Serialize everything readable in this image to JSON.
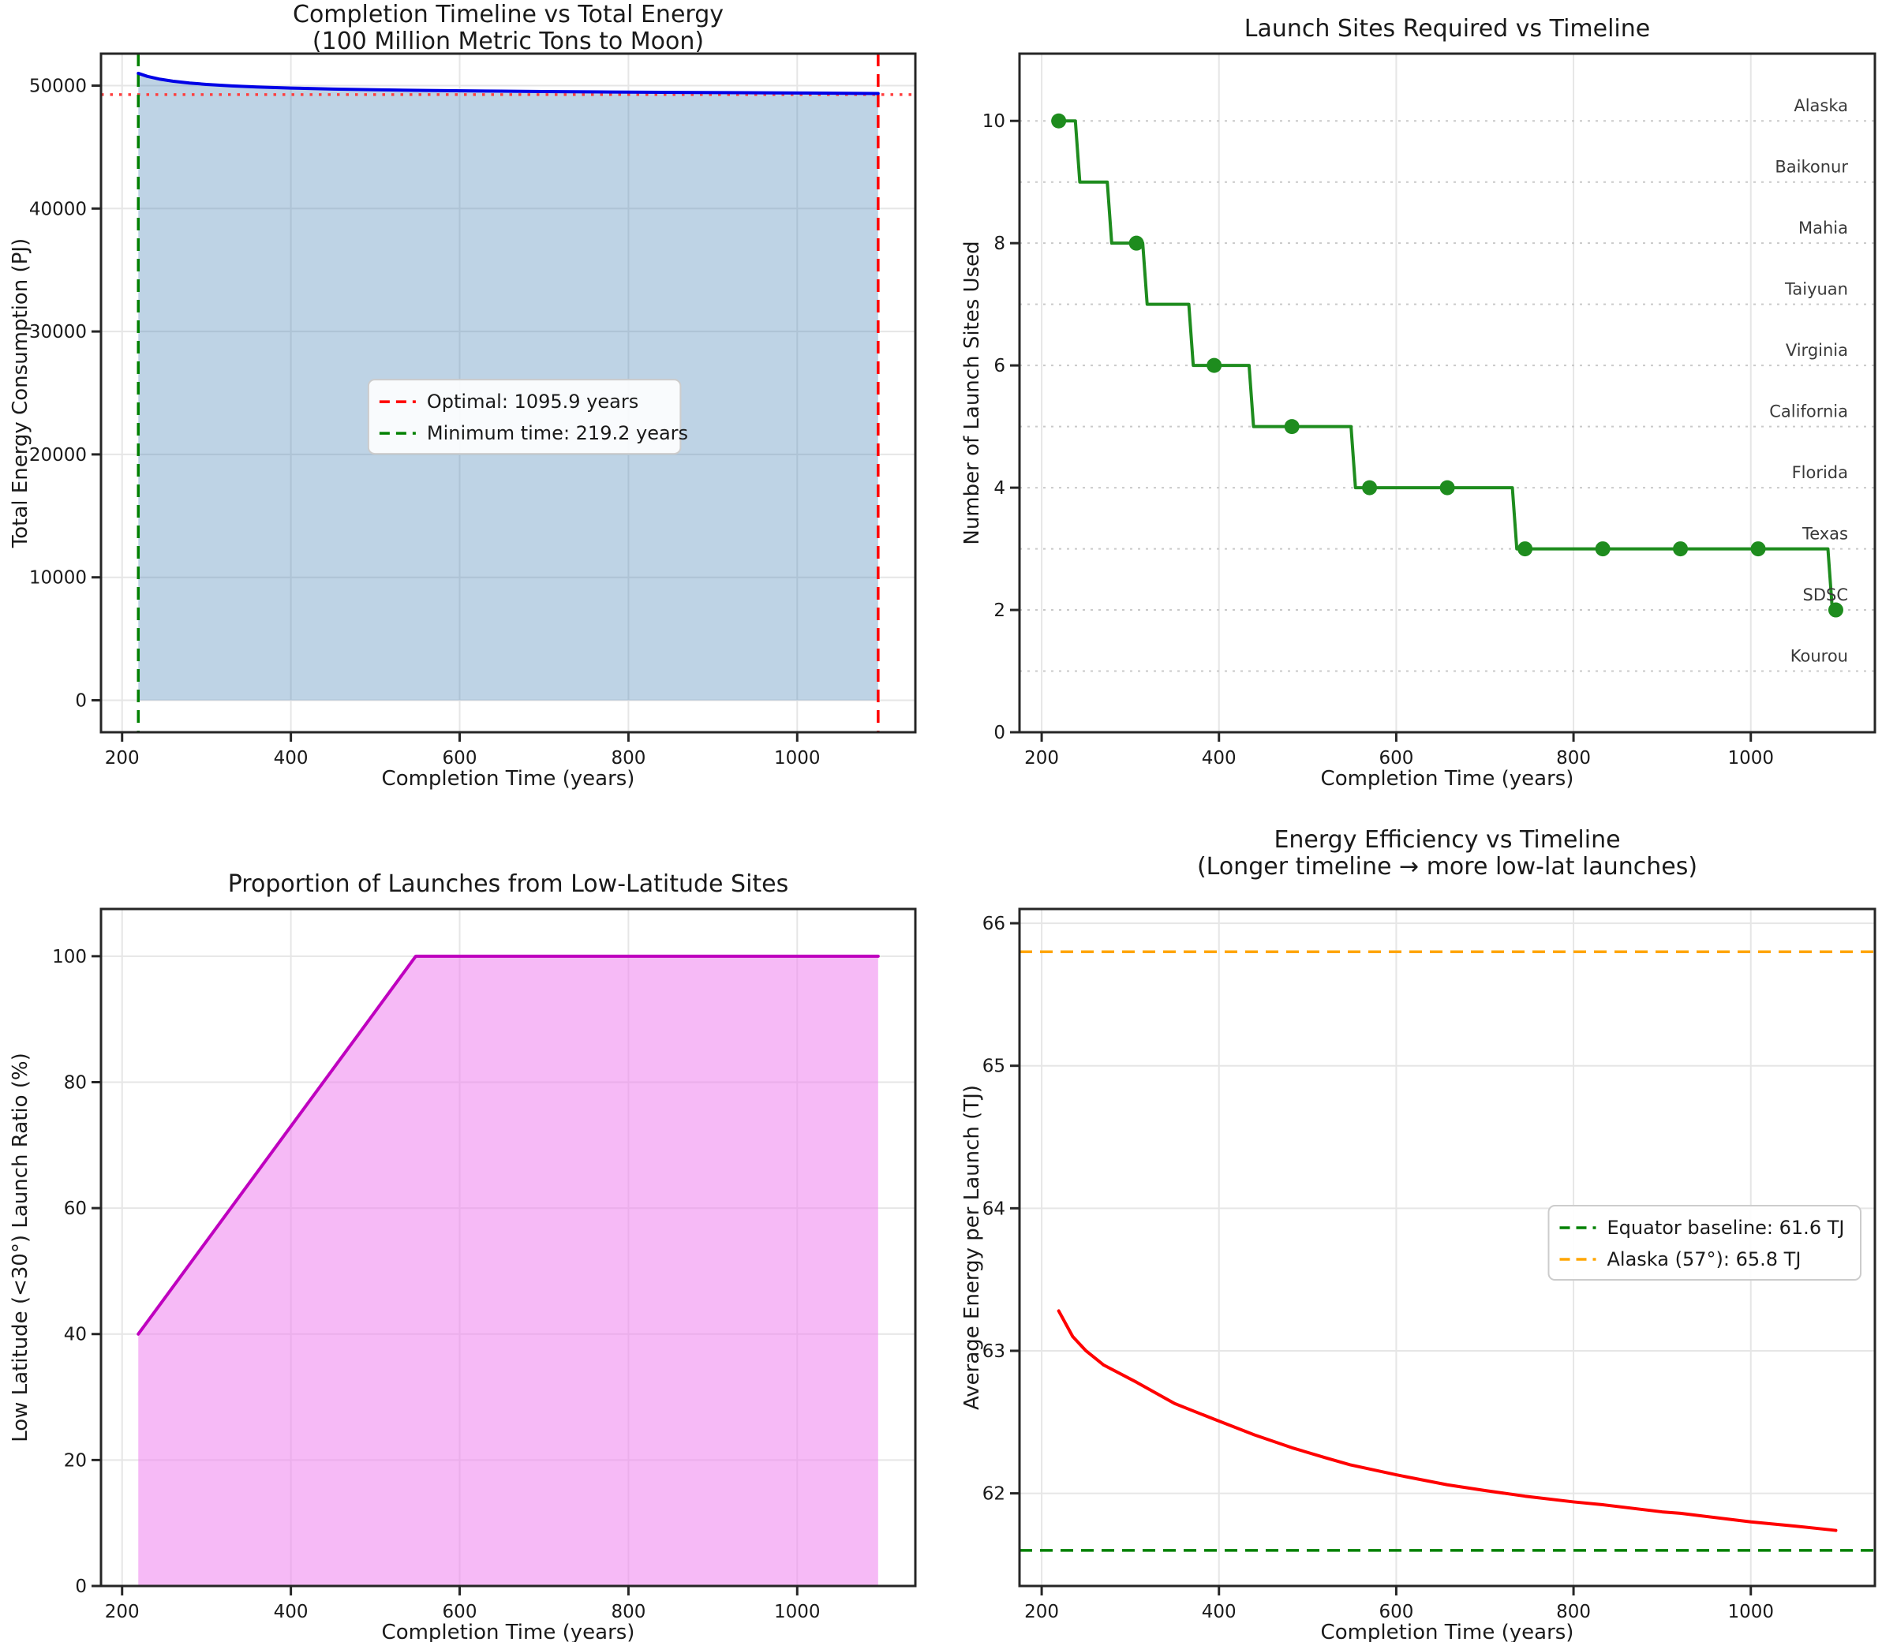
{
  "figure": {
    "background": "#ffffff",
    "text_color": "#1a1a1a"
  },
  "chart_data": [
    {
      "type": "area",
      "title": "Completion Timeline vs Total Energy",
      "subtitle": "(100 Million Metric Tons to Moon)",
      "xlabel": "Completion Time (years)",
      "ylabel": "Total Energy Consumption (PJ)",
      "xlim": [
        175,
        1140
      ],
      "ylim": [
        -2600,
        52600
      ],
      "xticks": [
        200,
        400,
        600,
        800,
        1000
      ],
      "yticks": [
        0,
        10000,
        20000,
        30000,
        40000,
        50000
      ],
      "grid": "solid",
      "line_color": "#0000e6",
      "fill_color": "rgba(70,130,180,0.35)",
      "baseline": 0,
      "x": [
        219.2,
        230,
        245,
        260,
        280,
        300,
        330,
        360,
        400,
        450,
        500,
        560,
        630,
        700,
        780,
        860,
        940,
        1010,
        1095.9
      ],
      "y": [
        51000,
        50750,
        50520,
        50360,
        50210,
        50100,
        49980,
        49890,
        49800,
        49720,
        49660,
        49610,
        49560,
        49520,
        49480,
        49450,
        49420,
        49395,
        49360
      ],
      "vlines": [
        {
          "x": 1095.9,
          "color": "#ff0000",
          "dash": "dashed",
          "label": "Optimal: 1095.9 years"
        },
        {
          "x": 219.2,
          "color": "#008000",
          "dash": "dashed",
          "label": "Minimum time: 219.2 years"
        }
      ],
      "hlines": [
        {
          "y": 49270,
          "color": "#ff4040",
          "dash": "dotted"
        }
      ],
      "legend": {
        "loc": "center",
        "cx": 0.52,
        "cy": 0.535
      }
    },
    {
      "type": "step",
      "title": "Launch Sites Required vs Timeline",
      "xlabel": "Completion Time (years)",
      "ylabel": "Number of Launch Sites Used",
      "xlim": [
        175,
        1140
      ],
      "ylim": [
        0,
        11.1
      ],
      "xticks": [
        200,
        400,
        600,
        800,
        1000
      ],
      "yticks": [
        0,
        2,
        4,
        6,
        8,
        10
      ],
      "hgrid_dotted": [
        1,
        2,
        3,
        4,
        5,
        6,
        7,
        8,
        9,
        10
      ],
      "grid": "vertical",
      "line_color": "#1e8c1e",
      "x": [
        219.2,
        238,
        243,
        274,
        279,
        314,
        319,
        366,
        371,
        434,
        439,
        549,
        554,
        731,
        736,
        1087,
        1092,
        1095.9
      ],
      "y": [
        10,
        10,
        9,
        9,
        8,
        8,
        7,
        7,
        6,
        6,
        5,
        5,
        4,
        4,
        3,
        3,
        2,
        2
      ],
      "markers": {
        "x": [
          219.2,
          306.9,
          394.6,
          482.3,
          569.9,
          657.6,
          745.3,
          833.0,
          920.6,
          1008.3,
          1095.9
        ],
        "y": [
          10,
          8,
          6,
          5,
          4,
          4,
          3,
          3,
          3,
          3,
          2
        ]
      },
      "site_labels": [
        {
          "name": "Alaska",
          "level": 10
        },
        {
          "name": "Baikonur",
          "level": 9
        },
        {
          "name": "Mahia",
          "level": 8
        },
        {
          "name": "Taiyuan",
          "level": 7
        },
        {
          "name": "Virginia",
          "level": 6
        },
        {
          "name": "California",
          "level": 5
        },
        {
          "name": "Florida",
          "level": 4
        },
        {
          "name": "Texas",
          "level": 3
        },
        {
          "name": "SDSC",
          "level": 2
        },
        {
          "name": "Kourou",
          "level": 1
        }
      ]
    },
    {
      "type": "area",
      "title": "Proportion of Launches from Low-Latitude Sites",
      "xlabel": "Completion Time (years)",
      "ylabel": "Low Latitude (<30°) Launch Ratio (%)",
      "xlim": [
        175,
        1140
      ],
      "ylim": [
        0,
        107.5
      ],
      "xticks": [
        200,
        400,
        600,
        800,
        1000
      ],
      "yticks": [
        0,
        20,
        40,
        60,
        80,
        100
      ],
      "grid": "solid",
      "line_color": "#bf00bf",
      "fill_color": "rgba(238,130,238,0.55)",
      "baseline": 0,
      "x": [
        219.2,
        306.9,
        394.6,
        482.3,
        548,
        657.6,
        745.3,
        833.0,
        920.6,
        1008.3,
        1095.9
      ],
      "y": [
        40,
        56,
        72,
        88,
        100,
        100,
        100,
        100,
        100,
        100,
        100
      ]
    },
    {
      "type": "line",
      "title": "Energy Efficiency vs Timeline",
      "subtitle": "(Longer timeline → more low-lat launches)",
      "xlabel": "Completion Time (years)",
      "ylabel": "Average Energy per Launch (TJ)",
      "xlim": [
        175,
        1140
      ],
      "ylim": [
        61.35,
        66.1
      ],
      "xticks": [
        200,
        400,
        600,
        800,
        1000
      ],
      "yticks": [
        62,
        63,
        64,
        65,
        66
      ],
      "grid": "solid",
      "line_color": "#ff0000",
      "x": [
        219.2,
        235,
        250,
        270,
        306.9,
        350,
        394.6,
        440,
        482.3,
        520,
        548,
        600,
        657.6,
        700,
        745.3,
        800,
        833,
        900,
        920.6,
        1000,
        1050,
        1095.9
      ],
      "y": [
        63.28,
        63.1,
        63.0,
        62.9,
        62.78,
        62.63,
        62.52,
        62.41,
        62.32,
        62.25,
        62.2,
        62.13,
        62.06,
        62.02,
        61.98,
        61.94,
        61.92,
        61.87,
        61.86,
        61.8,
        61.77,
        61.74
      ],
      "hlines": [
        {
          "y": 61.6,
          "color": "#008000",
          "dash": "dashed",
          "label": "Equator baseline: 61.6 TJ"
        },
        {
          "y": 65.8,
          "color": "#ffa500",
          "dash": "dashed",
          "label": "Alaska (57°): 65.8 TJ"
        }
      ],
      "legend": {
        "loc": "right",
        "cy": 0.493
      }
    }
  ]
}
